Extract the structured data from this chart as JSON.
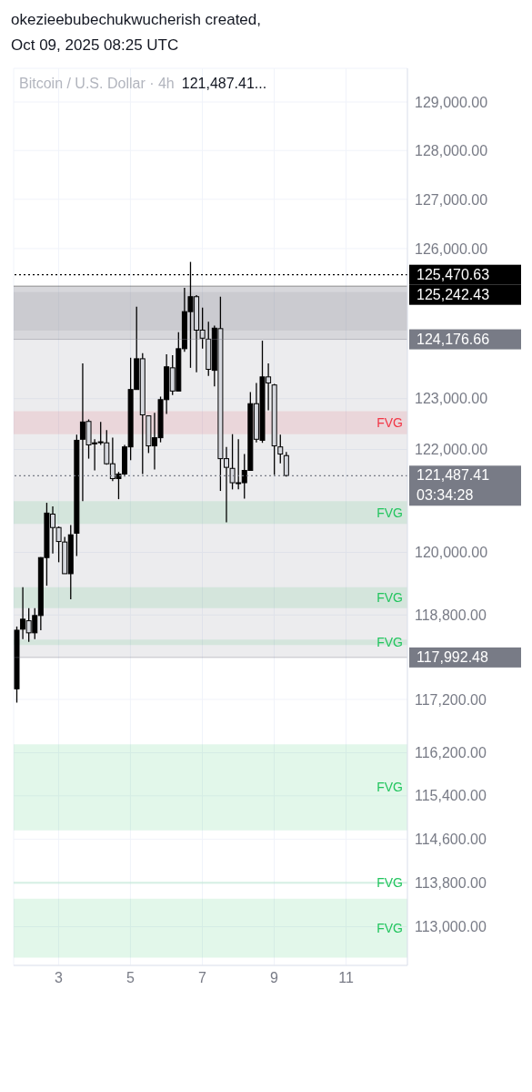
{
  "chart_data": {
    "type": "candlestick",
    "title": "Bitcoin / U.S. Dollar · 4h",
    "subtitle": "121,487.41...",
    "annotations": [
      "okezieebubechukwucherish created,",
      "Oct 09, 2025 08:25 UTC",
      "03:34:28"
    ],
    "x": [
      "2025-10-01T20:00",
      "2025-10-02T00:00",
      "2025-10-02T04:00",
      "2025-10-02T08:00",
      "2025-10-02T12:00",
      "2025-10-02T16:00",
      "2025-10-02T20:00",
      "2025-10-03T00:00",
      "2025-10-03T04:00",
      "2025-10-03T08:00",
      "2025-10-03T12:00",
      "2025-10-03T16:00",
      "2025-10-03T20:00",
      "2025-10-04T00:00",
      "2025-10-04T04:00",
      "2025-10-04T08:00",
      "2025-10-04T12:00",
      "2025-10-04T16:00",
      "2025-10-04T20:00",
      "2025-10-05T00:00",
      "2025-10-05T04:00",
      "2025-10-05T08:00",
      "2025-10-05T12:00",
      "2025-10-05T16:00",
      "2025-10-05T20:00",
      "2025-10-06T00:00",
      "2025-10-06T04:00",
      "2025-10-06T08:00",
      "2025-10-06T12:00",
      "2025-10-06T16:00",
      "2025-10-06T20:00",
      "2025-10-07T00:00",
      "2025-10-07T04:00",
      "2025-10-07T08:00",
      "2025-10-07T12:00",
      "2025-10-07T16:00",
      "2025-10-07T20:00",
      "2025-10-08T00:00",
      "2025-10-08T04:00",
      "2025-10-08T08:00",
      "2025-10-08T12:00",
      "2025-10-08T16:00",
      "2025-10-08T20:00",
      "2025-10-09T00:00",
      "2025-10-09T04:00",
      "2025-10-09T08:00"
    ],
    "ohlc": [
      [
        117400,
        118580,
        117140,
        118510
      ],
      [
        118530,
        119330,
        118340,
        118720
      ],
      [
        118690,
        118930,
        118290,
        118460
      ],
      [
        118460,
        118930,
        118340,
        118790
      ],
      [
        118790,
        119910,
        118510,
        119900
      ],
      [
        119900,
        120960,
        119360,
        120760
      ],
      [
        120740,
        120890,
        119980,
        120480
      ],
      [
        120480,
        120500,
        119810,
        120210
      ],
      [
        120200,
        120300,
        119590,
        119590
      ],
      [
        119590,
        120530,
        119100,
        120340
      ],
      [
        120370,
        122290,
        119930,
        122180
      ],
      [
        122200,
        123700,
        120990,
        122540
      ],
      [
        122550,
        122590,
        121820,
        122090
      ],
      [
        122110,
        122200,
        121590,
        122130
      ],
      [
        122140,
        122540,
        122090,
        122150
      ],
      [
        122130,
        122380,
        121700,
        121720
      ],
      [
        121720,
        122230,
        121380,
        121430
      ],
      [
        121430,
        121560,
        121030,
        121520
      ],
      [
        121520,
        122090,
        121470,
        122050
      ],
      [
        122050,
        123810,
        121790,
        123180
      ],
      [
        123180,
        124830,
        123180,
        123790
      ],
      [
        123790,
        123900,
        121520,
        122680
      ],
      [
        122660,
        122660,
        121930,
        122070
      ],
      [
        122070,
        122720,
        121610,
        122230
      ],
      [
        122230,
        123040,
        122140,
        122980
      ],
      [
        122980,
        123880,
        122700,
        123630
      ],
      [
        123610,
        123860,
        123070,
        123150
      ],
      [
        123150,
        124320,
        123150,
        123990
      ],
      [
        123990,
        125210,
        123930,
        124730
      ],
      [
        124730,
        125730,
        123610,
        125030
      ],
      [
        125030,
        125060,
        123520,
        124360
      ],
      [
        124360,
        124810,
        123990,
        124200
      ],
      [
        124180,
        124530,
        123450,
        123580
      ],
      [
        123560,
        124450,
        123240,
        124400
      ],
      [
        124390,
        125030,
        121190,
        121820
      ],
      [
        121820,
        122050,
        120580,
        121650
      ],
      [
        121630,
        122300,
        121220,
        121350
      ],
      [
        121350,
        122200,
        121220,
        121350
      ],
      [
        121350,
        121910,
        121040,
        121590
      ],
      [
        121590,
        123130,
        121580,
        122900
      ],
      [
        122900,
        123310,
        122140,
        122200
      ],
      [
        122180,
        124150,
        122130,
        123430
      ],
      [
        123430,
        123700,
        122770,
        123310
      ],
      [
        123270,
        123290,
        121500,
        122070
      ],
      [
        122050,
        122290,
        121730,
        121910
      ],
      [
        121880,
        121950,
        121470,
        121490
      ]
    ],
    "xlim": [
      "2025-10-01T18:00",
      "2025-10-12T17:00"
    ],
    "xticks": [
      {
        "value": "2025-10-03",
        "label": "3"
      },
      {
        "value": "2025-10-05",
        "label": "5"
      },
      {
        "value": "2025-10-07",
        "label": "7"
      },
      {
        "value": "2025-10-09",
        "label": "9"
      },
      {
        "value": "2025-10-11",
        "label": "11"
      }
    ],
    "ylim": [
      112300,
      129700
    ],
    "yticks": [
      {
        "value": 113000,
        "label": "113,000.00"
      },
      {
        "value": 113800,
        "label": "113,800.00"
      },
      {
        "value": 114600,
        "label": "114,600.00"
      },
      {
        "value": 115400,
        "label": "115,400.00"
      },
      {
        "value": 116200,
        "label": "116,200.00"
      },
      {
        "value": 117200,
        "label": "117,200.00"
      },
      {
        "value": 118800,
        "label": "118,800.00"
      },
      {
        "value": 120000,
        "label": "120,000.00"
      },
      {
        "value": 122000,
        "label": "122,000.00"
      },
      {
        "value": 123000,
        "label": "123,000.00"
      },
      {
        "value": 126000,
        "label": "126,000.00"
      },
      {
        "value": 127000,
        "label": "127,000.00"
      },
      {
        "value": 128000,
        "label": "128,000.00"
      },
      {
        "value": 129000,
        "label": "129,000.00"
      }
    ],
    "log": true,
    "grid": true,
    "bands": [
      {
        "axis": "y",
        "from": 120550,
        "to": 120990,
        "label": "FVG",
        "color": "#22c55e"
      },
      {
        "axis": "y",
        "from": 118930,
        "to": 119330,
        "label": "FVG",
        "color": "#22c55e"
      },
      {
        "axis": "y",
        "from": 118230,
        "to": 118330,
        "label": "FVG",
        "color": "#22c55e"
      },
      {
        "axis": "y",
        "from": 114760,
        "to": 116360,
        "label": "FVG",
        "color": "#22c55e"
      },
      {
        "axis": "y",
        "from": 113780,
        "to": 113820,
        "label": "FVG",
        "color": "#22c55e"
      },
      {
        "axis": "y",
        "from": 112440,
        "to": 113510,
        "label": "FVG",
        "color": "#22c55e"
      },
      {
        "axis": "y",
        "from": 122300,
        "to": 122750,
        "label": "FVG",
        "color": "#f23645"
      },
      {
        "axis": "y",
        "from": 117992.48,
        "to": 125242.43,
        "color": "#9598a1"
      },
      {
        "axis": "y",
        "from": 124176.66,
        "to": 125242.43,
        "color": "#787b86"
      },
      {
        "axis": "y",
        "from": 124350,
        "to": 125120,
        "color": "#9598a1"
      }
    ],
    "ref_lines": [
      {
        "axis": "y",
        "value": 125470.63,
        "label": "125,470.63",
        "color": "#000000",
        "line_style": "dotted"
      },
      {
        "axis": "y",
        "value": 125242.43,
        "label": "125,242.43",
        "color": "#000000"
      },
      {
        "axis": "y",
        "value": 124176.66,
        "label": "124,176.66",
        "color": "#787b86"
      },
      {
        "axis": "y",
        "value": 121487.41,
        "label": "121,487.41",
        "color": "#787b86",
        "line_style": "dotted"
      },
      {
        "axis": "y",
        "value": 117992.48,
        "label": "117,992.48",
        "color": "#787b86"
      }
    ]
  }
}
